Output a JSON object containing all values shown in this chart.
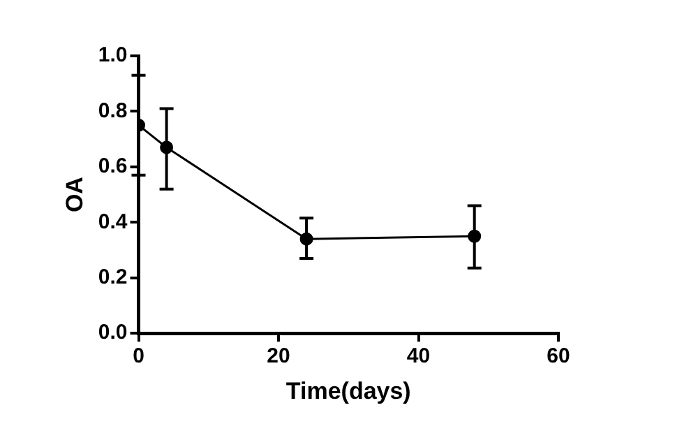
{
  "chart_data": {
    "type": "line",
    "xlabel": "Time(days)",
    "ylabel": "OA",
    "x": [
      0,
      4,
      24,
      48
    ],
    "series": [
      {
        "color": "#000000",
        "values": [
          0.75,
          0.67,
          0.34,
          0.35
        ],
        "errors": [
          0.18,
          [
            0.52,
            0.81
          ],
          [
            0.27,
            0.415
          ],
          [
            0.235,
            0.46
          ]
        ]
      }
    ],
    "xlim": [
      0,
      60
    ],
    "xticks": [
      0,
      20,
      40,
      60
    ],
    "ylim": [
      0,
      1.0
    ],
    "yticks": [
      {
        "value": 0,
        "label": "0.0"
      },
      {
        "value": 0.2,
        "label": "0.2"
      },
      {
        "value": 0.4,
        "label": "0.4"
      },
      {
        "value": 0.6,
        "label": "0.6"
      },
      {
        "value": 0.8,
        "label": "0.8"
      },
      {
        "value": 1.0,
        "label": "1.0"
      }
    ],
    "grid": false,
    "legend": false,
    "marker": "circle",
    "line_style": "solid"
  }
}
